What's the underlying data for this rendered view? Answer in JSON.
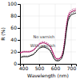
{
  "chart_data": {
    "type": "line",
    "xlabel": "Wavelength (nm)",
    "ylabel": "R (%)",
    "xlim": [
      380,
      730
    ],
    "ylim": [
      0,
      100
    ],
    "xticks": [
      400,
      500,
      600,
      700
    ],
    "yticks": [
      0,
      20,
      40,
      60,
      80,
      100
    ],
    "grid": true,
    "x": [
      380,
      390,
      400,
      410,
      420,
      430,
      440,
      450,
      460,
      470,
      480,
      490,
      500,
      510,
      520,
      530,
      540,
      550,
      560,
      570,
      580,
      590,
      600,
      610,
      620,
      630,
      640,
      650,
      660,
      670,
      680,
      690,
      700,
      710,
      720,
      730
    ],
    "series": [
      {
        "color": "#aa1060",
        "line_style": "solid",
        "values": [
          18,
          19,
          20,
          20,
          20,
          20,
          20,
          21,
          22,
          24,
          27,
          30,
          33,
          34,
          35,
          35,
          34,
          33,
          31,
          28,
          22,
          15,
          10,
          8,
          8,
          9,
          12,
          20,
          38,
          62,
          78,
          84,
          87,
          88,
          89,
          90
        ]
      },
      {
        "color": "#aa1060",
        "line_style": "dotted",
        "values": [
          19,
          20,
          21,
          21,
          21,
          21,
          21,
          22,
          23,
          25,
          28,
          31,
          34,
          36,
          37,
          37,
          36,
          35,
          33,
          30,
          24,
          17,
          11,
          9,
          9,
          10,
          14,
          23,
          42,
          66,
          81,
          87,
          90,
          91,
          92,
          93
        ]
      },
      {
        "color": "#222222",
        "line_style": "solid",
        "values": [
          10,
          11,
          12,
          12,
          12,
          12,
          13,
          14,
          15,
          17,
          20,
          23,
          26,
          27,
          28,
          28,
          27,
          26,
          24,
          21,
          16,
          10,
          6,
          5,
          5,
          6,
          9,
          16,
          32,
          55,
          72,
          78,
          82,
          83,
          84,
          85
        ]
      },
      {
        "color": "#222222",
        "line_style": "dotted",
        "values": [
          11,
          12,
          13,
          13,
          13,
          13,
          14,
          15,
          16,
          18,
          21,
          24,
          27,
          29,
          30,
          30,
          29,
          28,
          26,
          23,
          17,
          11,
          7,
          6,
          6,
          7,
          10,
          18,
          35,
          58,
          75,
          81,
          85,
          86,
          87,
          88
        ]
      }
    ],
    "annotations": [
      {
        "text": "No varnish",
        "x": 462,
        "y": 43,
        "color": "#333333"
      },
      {
        "text": "With varnish",
        "x": 444,
        "y": 28,
        "color": "#333333"
      }
    ]
  }
}
